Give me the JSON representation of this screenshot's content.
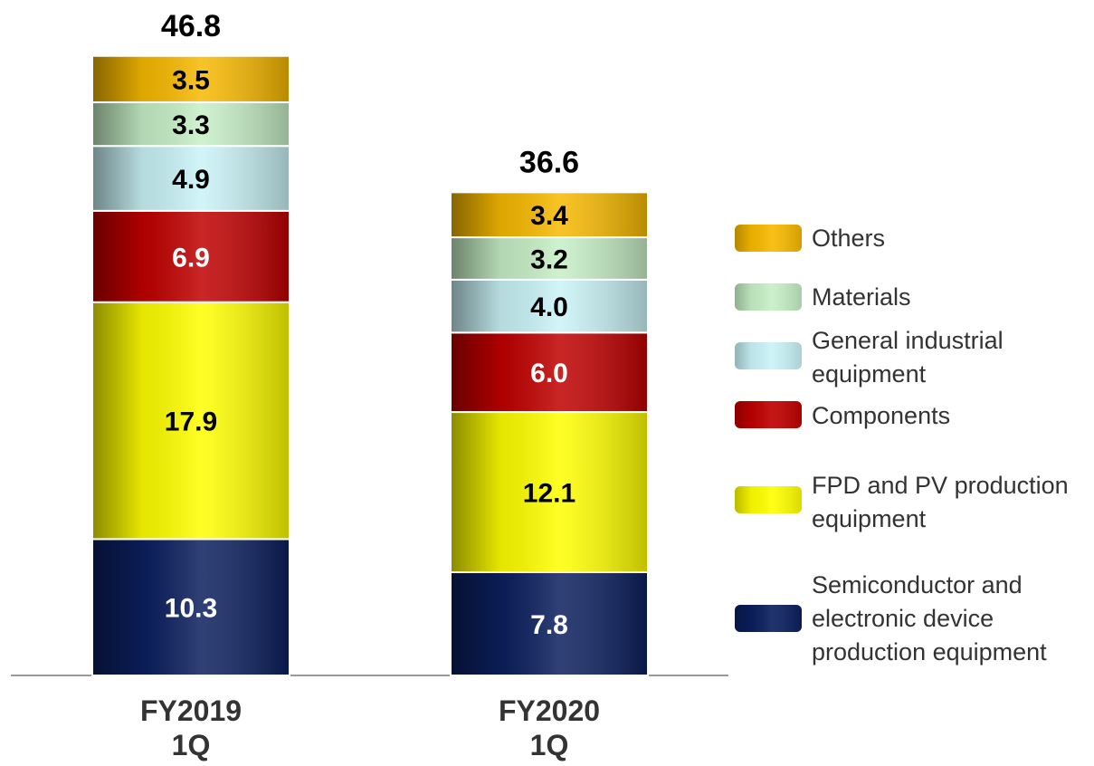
{
  "chart_data": {
    "type": "stacked_bar",
    "categories": [
      "FY2019\n1Q",
      "FY2020\n1Q"
    ],
    "totals": [
      46.8,
      36.6
    ],
    "series": [
      {
        "name": "Semiconductor and electronic device production equipment",
        "color": "#0b1f5e",
        "values": [
          10.3,
          7.8
        ],
        "value_labels": [
          "10.3",
          "7.8"
        ]
      },
      {
        "name": "FPD and PV production equipment",
        "color": "#ffff00",
        "values": [
          17.9,
          12.1
        ],
        "value_labels": [
          "17.9",
          "12.1"
        ]
      },
      {
        "name": "Components",
        "color": "#c00000",
        "values": [
          6.9,
          6.0
        ],
        "value_labels": [
          "6.9",
          "6.0"
        ]
      },
      {
        "name": "General industrial equipment",
        "color": "#c9f3f7",
        "values": [
          4.9,
          4.0
        ],
        "value_labels": [
          "4.9",
          "4.0"
        ]
      },
      {
        "name": "Materials",
        "color": "#c6efc6",
        "values": [
          3.3,
          3.2
        ],
        "value_labels": [
          "3.3",
          "3.2"
        ]
      },
      {
        "name": "Others",
        "color": "#f7b900",
        "values": [
          3.5,
          3.4
        ],
        "value_labels": [
          "3.5",
          "3.4"
        ]
      }
    ]
  }
}
